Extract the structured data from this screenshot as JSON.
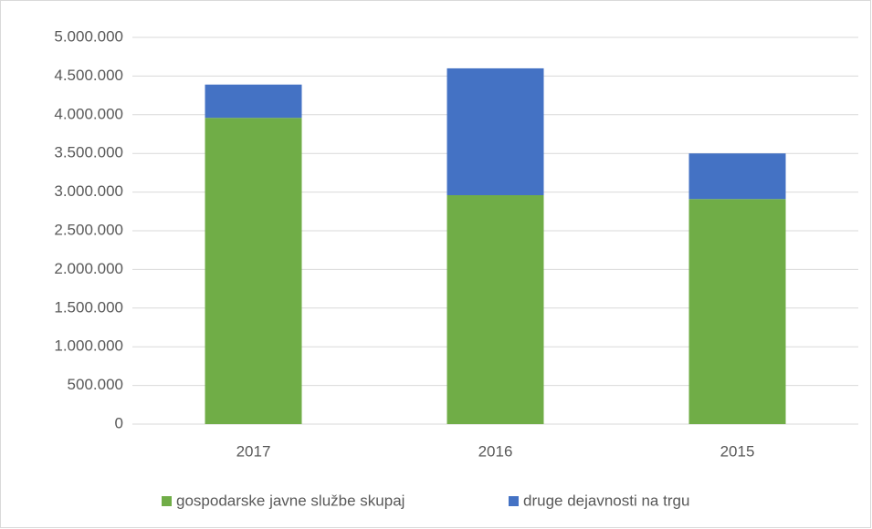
{
  "chart_data": {
    "type": "stacked_bar",
    "categories": [
      "2017",
      "2016",
      "2015"
    ],
    "series": [
      {
        "name": "gospodarske javne službe skupaj",
        "color": "#70ad47",
        "values": [
          3960000,
          2960000,
          2910000
        ]
      },
      {
        "name": "druge dejavnosti na trgu",
        "color": "#4472c4",
        "values": [
          430000,
          1640000,
          590000
        ]
      }
    ],
    "ylim": [
      0,
      5000000
    ],
    "yticks": [
      0,
      {
        "value": 500000,
        "label": "500.000"
      },
      {
        "value": 1000000,
        "label": "1.000.000"
      },
      {
        "value": 1500000,
        "label": "1.500.000"
      },
      {
        "value": 2000000,
        "label": "2.000.000"
      },
      {
        "value": 2500000,
        "label": "2.500.000"
      },
      {
        "value": 3000000,
        "label": "3.000.000"
      },
      {
        "value": 3500000,
        "label": "3.500.000"
      },
      {
        "value": 4000000,
        "label": "4.000.000"
      },
      {
        "value": 4500000,
        "label": "4.500.000"
      },
      {
        "value": 5000000,
        "label": "5.000.000"
      }
    ],
    "grid": true,
    "legend": "bottom"
  }
}
